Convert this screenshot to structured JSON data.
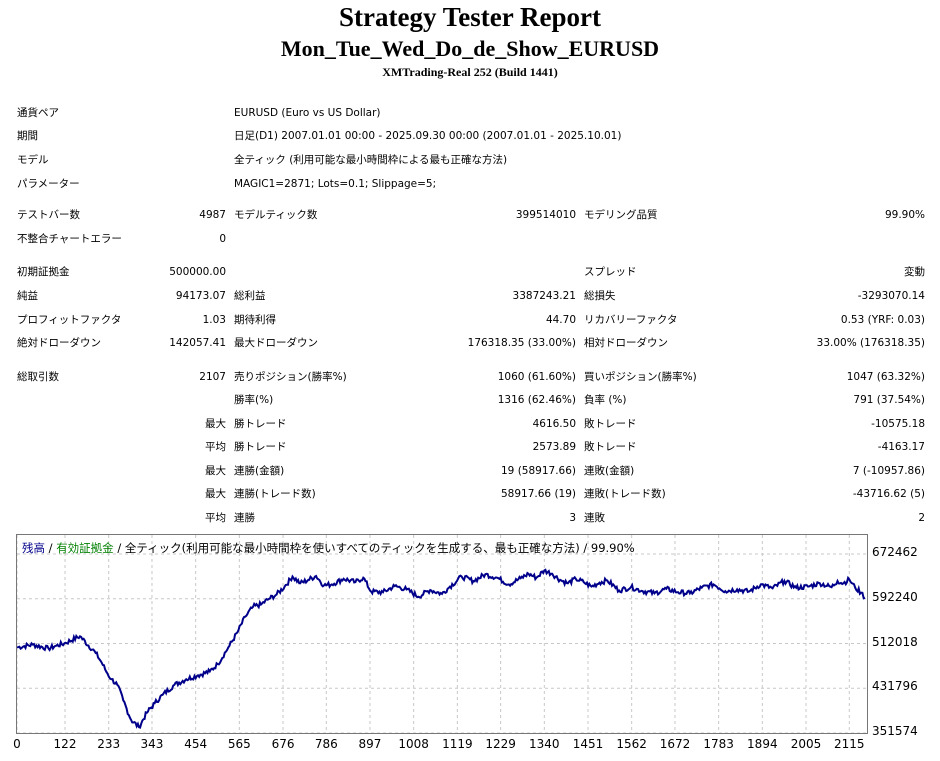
{
  "header": {
    "title": "Strategy Tester Report",
    "subtitle": "Mon_Tue_Wed_Do_de_Show_EURUSD",
    "build": "XMTrading-Real 252 (Build 1441)"
  },
  "info": [
    {
      "label": "通貨ペア",
      "value": "EURUSD (Euro vs US Dollar)"
    },
    {
      "label": "期間",
      "value": "日足(D1) 2007.01.01 00:00 - 2025.09.30 00:00 (2007.01.01 - 2025.10.01)"
    },
    {
      "label": "モデル",
      "value": "全ティック (利用可能な最小時間枠による最も正確な方法)"
    },
    {
      "label": "パラメーター",
      "value": "MAGIC1=2871; Lots=0.1; Slippage=5;"
    }
  ],
  "stats": {
    "bars_label": "テストバー数",
    "bars": "4987",
    "ticks_label": "モデルティック数",
    "ticks": "399514010",
    "quality_label": "モデリング品質",
    "quality": "99.90%",
    "mismatch_label": "不整合チャートエラー",
    "mismatch": "0",
    "deposit_label": "初期証拠金",
    "deposit": "500000.00",
    "spread_label": "スプレッド",
    "spread": "変動",
    "net_label": "純益",
    "net": "94173.07",
    "gross_profit_label": "総利益",
    "gross_profit": "3387243.21",
    "gross_loss_label": "総損失",
    "gross_loss": "-3293070.14",
    "pf_label": "プロフィットファクタ",
    "pf": "1.03",
    "expected_label": "期待利得",
    "expected": "44.70",
    "recovery_label": "リカバリーファクタ",
    "recovery": "0.53 (YRF: 0.03)",
    "abs_dd_label": "絶対ドローダウン",
    "abs_dd": "142057.41",
    "max_dd_label": "最大ドローダウン",
    "max_dd": "176318.35 (33.00%)",
    "rel_dd_label": "相対ドローダウン",
    "rel_dd": "33.00% (176318.35)",
    "trades_label": "総取引数",
    "trades": "2107",
    "short_label": "売りポジション(勝率%)",
    "short": "1060 (61.60%)",
    "long_label": "買いポジション(勝率%)",
    "long": "1047 (63.32%)",
    "win_rate_label": "勝率(%)",
    "win_rate": "1316 (62.46%)",
    "loss_rate_label": "負率 (%)",
    "loss_rate": "791 (37.54%)",
    "max_label": "最大",
    "avg_label": "平均",
    "max_win_label": "勝トレード",
    "max_win": "4616.50",
    "max_loss_label": "敗トレード",
    "max_loss": "-10575.18",
    "avg_win_label": "勝トレード",
    "avg_win": "2573.89",
    "avg_loss_label": "敗トレード",
    "avg_loss": "-4163.17",
    "cons_win_amt_label": "連勝(金額)",
    "cons_win_amt": "19 (58917.66)",
    "cons_loss_amt_label": "連敗(金額)",
    "cons_loss_amt": "7 (-10957.86)",
    "cons_win_cnt_label": "連勝(トレード数)",
    "cons_win_cnt": "58917.66 (19)",
    "cons_loss_cnt_label": "連敗(トレード数)",
    "cons_loss_cnt": "-43716.62 (5)",
    "avg_cons_win_label": "連勝",
    "avg_cons_win": "3",
    "avg_cons_loss_label": "連敗",
    "avg_cons_loss": "2"
  },
  "chart_data": {
    "type": "line",
    "legend_balance": "残高",
    "legend_sep1": " / ",
    "legend_equity": "有効証拠金",
    "legend_rest": " / 全ティック(利用可能な最小時間枠を使いすべてのティックを生成する、最も正確な方法) / 99.90%",
    "colors": {
      "balance": "#00008b",
      "equity": "#008000",
      "grid": "#c8c8c8"
    },
    "ylim": [
      351574,
      672462
    ],
    "yticks": [
      "672462",
      "592240",
      "512018",
      "431796",
      "351574"
    ],
    "xlim": [
      0,
      2160
    ],
    "xticks": [
      "0",
      "122",
      "233",
      "343",
      "454",
      "565",
      "676",
      "786",
      "897",
      "1008",
      "1119",
      "1229",
      "1340",
      "1451",
      "1562",
      "1672",
      "1783",
      "1894",
      "2005",
      "2115"
    ],
    "x": [
      0,
      40,
      80,
      100,
      120,
      160,
      200,
      215,
      230,
      240,
      255,
      270,
      290,
      310,
      330,
      350,
      370,
      400,
      430,
      460,
      490,
      510,
      540,
      560,
      580,
      600,
      620,
      640,
      660,
      680,
      700,
      720,
      740,
      760,
      780,
      800,
      830,
      860,
      880,
      900,
      930,
      960,
      990,
      1020,
      1050,
      1080,
      1100,
      1130,
      1160,
      1190,
      1220,
      1250,
      1280,
      1300,
      1320,
      1340,
      1360,
      1380,
      1400,
      1420,
      1440,
      1460,
      1480,
      1500,
      1530,
      1560,
      1590,
      1620,
      1650,
      1680,
      1710,
      1740,
      1770,
      1800,
      1830,
      1860,
      1890,
      1920,
      1950,
      1980,
      2010,
      2040,
      2070,
      2085,
      2100,
      2115,
      2130,
      2145,
      2155
    ],
    "y": [
      505000,
      510000,
      503000,
      508000,
      512000,
      525000,
      495000,
      478000,
      458000,
      448000,
      438000,
      410000,
      375000,
      362000,
      388000,
      405000,
      420000,
      438000,
      448000,
      455000,
      462000,
      475000,
      508000,
      532000,
      560000,
      578000,
      582000,
      592000,
      600000,
      614000,
      632000,
      620000,
      626000,
      633000,
      616000,
      618000,
      628000,
      622000,
      630000,
      605000,
      604000,
      615000,
      609000,
      596000,
      608000,
      601000,
      614000,
      632000,
      624000,
      636000,
      630000,
      618000,
      629000,
      637000,
      630000,
      643000,
      637000,
      626000,
      620000,
      628000,
      622000,
      614000,
      621000,
      625000,
      607000,
      613000,
      606000,
      602000,
      610000,
      604000,
      602000,
      612000,
      618000,
      606000,
      609000,
      605000,
      618000,
      611000,
      624000,
      612000,
      614000,
      620000,
      613000,
      624000,
      620000,
      627000,
      612000,
      603000,
      594000
    ]
  }
}
